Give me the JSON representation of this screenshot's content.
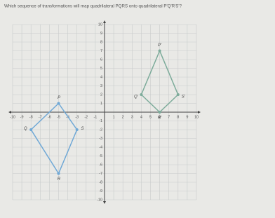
{
  "chart_data": {
    "type": "polygon",
    "title": "Which sequence of transformations will map quadrilateral PQRS onto quadrilateral P'Q'R'S'?",
    "xlim": [
      -10,
      10
    ],
    "ylim": [
      -10,
      10
    ],
    "xticks": [
      -10,
      -9,
      -8,
      -7,
      -6,
      -5,
      -4,
      -3,
      -2,
      -1,
      1,
      2,
      3,
      4,
      5,
      6,
      7,
      8,
      9,
      10
    ],
    "yticks": [
      -10,
      -9,
      -8,
      -7,
      -6,
      -5,
      -4,
      -3,
      -2,
      -1,
      1,
      2,
      3,
      4,
      5,
      6,
      7,
      8,
      9,
      10
    ],
    "grid": true,
    "series": [
      {
        "color": "#6fa8d6",
        "labels": [
          "P",
          "Q",
          "R",
          "S"
        ],
        "x": [
          -5,
          -8,
          -5,
          -3
        ],
        "values": [
          1,
          -2,
          -7,
          -2
        ]
      },
      {
        "color": "#7cab9a",
        "labels": [
          "P'",
          "Q'",
          "R'",
          "S'"
        ],
        "x": [
          6,
          4,
          6,
          8
        ],
        "values": [
          7,
          2,
          0,
          2
        ]
      }
    ]
  }
}
